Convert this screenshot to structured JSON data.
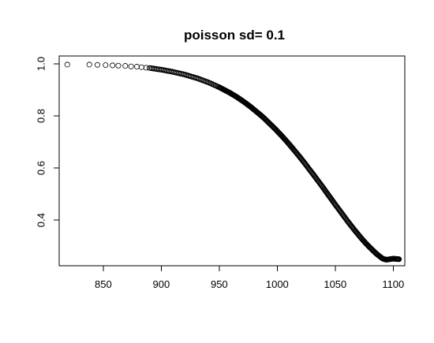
{
  "chart_data": {
    "type": "scatter",
    "title": "poisson  sd= 0.1",
    "xlabel": "",
    "ylabel": "",
    "xlim": [
      812,
      1110
    ],
    "ylim": [
      0.225,
      1.03
    ],
    "x_ticks": [
      850,
      900,
      950,
      1000,
      1050,
      1100
    ],
    "x_tick_labels": [
      "850",
      "900",
      "950",
      "1000",
      "1050",
      "1100"
    ],
    "y_ticks": [
      0.4,
      0.6,
      0.8,
      1.0
    ],
    "y_tick_labels": [
      "0.4",
      "0.6",
      "0.8",
      "1.0"
    ],
    "grid": false,
    "legend": "none",
    "marker": "open-circle",
    "color": "#000000",
    "series": [
      {
        "x": [
          819,
          838,
          845,
          852,
          858,
          863,
          869,
          874,
          879,
          883,
          887,
          890,
          893,
          896,
          899,
          902,
          905,
          908,
          911,
          914,
          917,
          920,
          923,
          926,
          929,
          932,
          935,
          938,
          941,
          944,
          947,
          950,
          953,
          956,
          959,
          962,
          965,
          968,
          971,
          974,
          977,
          980,
          983,
          986,
          989,
          992,
          995,
          998,
          1001,
          1004,
          1007,
          1010,
          1013,
          1016,
          1019,
          1022,
          1025,
          1028,
          1031,
          1034,
          1037,
          1040,
          1043,
          1046,
          1049,
          1052,
          1055,
          1058,
          1061,
          1064,
          1067,
          1070,
          1073,
          1076,
          1079,
          1082,
          1085,
          1088,
          1091,
          1094,
          1097,
          1100,
          1103,
          1105
        ],
        "y": [
          0.997,
          0.997,
          0.996,
          0.995,
          0.994,
          0.993,
          0.992,
          0.99,
          0.989,
          0.987,
          0.985,
          0.984,
          0.982,
          0.98,
          0.978,
          0.976,
          0.973,
          0.971,
          0.968,
          0.965,
          0.962,
          0.959,
          0.955,
          0.951,
          0.947,
          0.943,
          0.938,
          0.933,
          0.928,
          0.922,
          0.916,
          0.91,
          0.903,
          0.896,
          0.889,
          0.881,
          0.873,
          0.864,
          0.855,
          0.845,
          0.835,
          0.824,
          0.813,
          0.802,
          0.79,
          0.777,
          0.764,
          0.751,
          0.737,
          0.723,
          0.708,
          0.693,
          0.677,
          0.661,
          0.645,
          0.628,
          0.611,
          0.593,
          0.576,
          0.558,
          0.54,
          0.522,
          0.503,
          0.485,
          0.466,
          0.448,
          0.43,
          0.412,
          0.394,
          0.377,
          0.36,
          0.344,
          0.328,
          0.313,
          0.299,
          0.286,
          0.273,
          0.262,
          0.252,
          0.248,
          0.25,
          0.252,
          0.251,
          0.25
        ]
      }
    ]
  }
}
